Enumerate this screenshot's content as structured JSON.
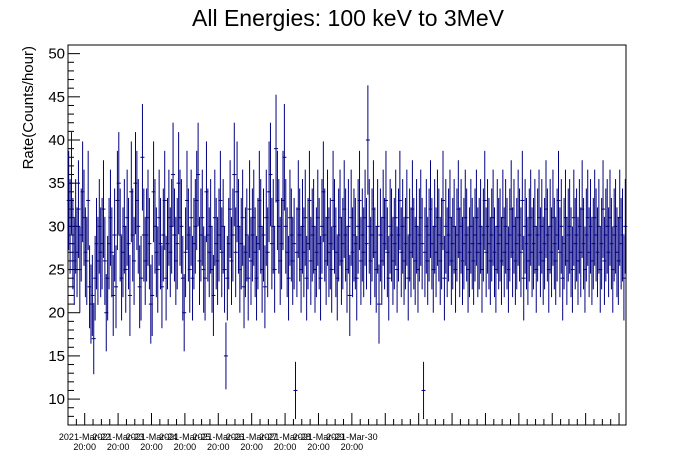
{
  "chart_data": {
    "type": "scatter",
    "title": "All Energies:  100 keV to 3MeV",
    "xlabel": "",
    "ylabel": "Rate(Counts/hour)",
    "ylim": [
      7,
      51
    ],
    "y_ticks": [
      10,
      15,
      20,
      25,
      30,
      35,
      40,
      45,
      50
    ],
    "x_tick_labels": [
      {
        "date": "2021-Mar-22",
        "time": "20:00"
      },
      {
        "date": "2021-Mar-23",
        "time": "20:00"
      },
      {
        "date": "2021-Mar-24",
        "time": "20:00"
      },
      {
        "date": "2021-Mar-25",
        "time": "20:00"
      },
      {
        "date": "2021-Mar-26",
        "time": "20:00"
      },
      {
        "date": "2021-Mar-27",
        "time": "20:00"
      },
      {
        "date": "2021-Mar-28",
        "time": "20:00"
      },
      {
        "date": "2021-Mar-29",
        "time": "20:00"
      },
      {
        "date": "2021-Mar-30",
        "time": "20:00"
      }
    ],
    "x_start": "2021-Mar-22 08:00",
    "x_step": "1 hour",
    "grid": false,
    "legend": "none",
    "error_bars": "sqrt(N)",
    "series": [
      {
        "color": "#000080",
        "values": [
          33,
          30,
          35,
          28,
          26,
          30,
          27,
          32,
          25,
          29,
          34,
          31,
          27,
          26,
          33,
          23,
          21,
          22,
          17,
          24,
          28,
          26,
          30,
          27,
          28,
          32,
          26,
          20,
          24,
          28,
          31,
          27,
          22,
          29,
          23,
          33,
          35,
          29,
          24,
          27,
          30,
          25,
          31,
          28,
          22,
          34,
          29,
          26,
          35,
          33,
          30,
          23,
          24,
          38,
          29,
          26,
          29,
          31,
          28,
          21,
          22,
          34,
          30,
          27,
          25,
          31,
          28,
          23,
          29,
          33,
          24,
          28,
          31,
          27,
          30,
          36,
          29,
          26,
          28,
          35,
          31,
          30,
          24,
          20,
          27,
          33,
          29,
          25,
          31,
          24,
          28,
          30,
          33,
          36,
          26,
          29,
          31,
          25,
          24,
          34,
          29,
          27,
          30,
          25,
          22,
          31,
          28,
          26,
          29,
          33,
          27,
          30,
          25,
          15,
          24,
          28,
          32,
          26,
          29,
          36,
          27,
          34,
          30,
          25,
          28,
          31,
          23,
          27,
          29,
          24,
          32,
          26,
          29,
          31,
          27,
          24,
          28,
          33,
          30,
          25,
          29,
          23,
          31,
          27,
          34,
          36,
          28,
          30,
          25,
          39,
          33,
          30,
          26,
          28,
          33,
          38,
          30,
          27,
          24,
          31,
          29,
          26,
          28,
          11,
          27,
          32,
          29,
          25,
          30,
          27,
          31,
          24,
          28,
          33,
          26,
          29,
          30,
          25,
          27,
          31,
          28,
          24,
          30,
          34,
          29,
          26,
          31,
          27,
          28,
          25,
          33,
          30,
          27,
          24,
          29,
          31,
          26,
          28,
          32,
          29,
          25,
          30,
          22,
          31,
          27,
          29,
          28,
          24,
          30,
          33,
          26,
          29,
          27,
          31,
          28,
          40,
          30,
          26,
          29,
          32,
          27,
          25,
          30,
          21,
          29,
          26,
          31,
          28,
          33,
          27,
          24,
          30,
          29,
          26,
          28,
          31,
          25,
          29,
          33,
          27,
          30,
          26,
          28,
          31,
          24,
          29,
          27,
          32,
          28,
          26,
          30,
          25,
          29,
          31,
          28,
          11,
          27,
          30,
          26,
          29,
          32,
          28,
          25,
          30,
          27,
          31,
          29,
          26,
          28,
          33,
          24,
          30,
          27,
          29,
          31,
          26,
          28,
          30,
          25,
          29,
          32,
          27,
          30,
          26,
          28,
          31,
          29,
          25,
          27,
          30,
          28,
          26,
          29,
          31,
          27,
          28,
          30,
          25,
          29,
          33,
          27,
          30,
          28,
          26,
          29,
          31,
          27,
          25,
          30,
          28,
          29,
          26,
          31,
          27,
          30,
          28,
          25,
          29,
          32,
          27,
          30,
          26,
          28,
          31,
          29,
          27,
          33,
          24,
          30,
          28,
          26,
          29,
          31,
          27,
          28,
          30,
          25,
          29,
          31,
          27,
          30,
          26,
          28,
          32,
          29,
          25,
          30,
          27,
          31,
          28,
          26,
          29,
          33,
          27,
          30,
          24,
          28,
          31,
          26,
          29,
          30,
          27,
          25,
          31,
          28,
          29,
          26,
          30,
          27,
          32,
          28,
          25,
          29,
          31,
          27,
          30,
          26,
          28,
          31,
          29,
          27,
          30,
          25,
          28,
          32,
          26,
          29,
          30,
          27,
          31,
          28,
          25,
          29,
          30,
          27,
          26,
          31,
          28,
          29,
          24,
          30
        ]
      }
    ]
  }
}
